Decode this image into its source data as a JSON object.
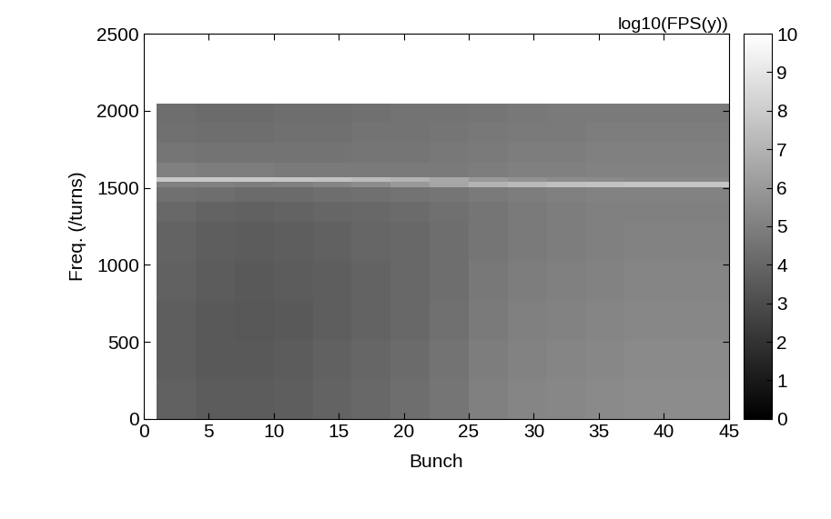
{
  "chart_data": {
    "type": "heatmap",
    "title": "log10(FPS(y))",
    "x_label": "Bunch",
    "y_label": "Freq. (/turns)",
    "x_edges": [
      1,
      4,
      7,
      10,
      13,
      16,
      19,
      22,
      25,
      28,
      31,
      34,
      37,
      40,
      43,
      45
    ],
    "y_edges": [
      0,
      256,
      512,
      768,
      1024,
      1280,
      1408,
      1504,
      1536,
      1568,
      1664,
      1792,
      1920,
      2048
    ],
    "cells": [
      [
        3.8,
        3.6,
        3.6,
        3.7,
        3.9,
        4.1,
        4.3,
        4.6,
        5.0,
        5.2,
        5.3,
        5.4,
        5.5,
        5.5,
        5.5
      ],
      [
        3.7,
        3.5,
        3.5,
        3.6,
        3.8,
        4.0,
        4.2,
        4.5,
        4.9,
        5.1,
        5.2,
        5.3,
        5.4,
        5.4,
        5.4
      ],
      [
        3.7,
        3.5,
        3.4,
        3.5,
        3.7,
        3.9,
        4.1,
        4.4,
        4.8,
        5.0,
        5.1,
        5.2,
        5.3,
        5.3,
        5.3
      ],
      [
        3.8,
        3.6,
        3.5,
        3.6,
        3.7,
        3.9,
        4.1,
        4.3,
        4.7,
        4.9,
        5.0,
        5.1,
        5.2,
        5.2,
        5.2
      ],
      [
        3.9,
        3.7,
        3.6,
        3.7,
        3.8,
        4.0,
        4.1,
        4.3,
        4.6,
        4.8,
        4.9,
        5.0,
        5.1,
        5.1,
        5.1
      ],
      [
        4.1,
        3.9,
        3.8,
        3.9,
        4.0,
        4.1,
        4.2,
        4.4,
        4.6,
        4.8,
        4.9,
        5.0,
        5.0,
        5.0,
        5.0
      ],
      [
        4.4,
        4.3,
        4.2,
        4.2,
        4.3,
        4.4,
        4.5,
        4.6,
        4.8,
        4.9,
        5.0,
        5.1,
        5.1,
        5.1,
        5.1
      ],
      [
        5.0,
        5.0,
        4.9,
        5.0,
        5.2,
        5.5,
        6.0,
        6.5,
        7.0,
        7.3,
        7.5,
        7.6,
        7.7,
        7.7,
        7.7
      ],
      [
        7.8,
        7.8,
        7.8,
        7.7,
        7.6,
        7.3,
        7.0,
        6.6,
        6.0,
        5.7,
        5.5,
        5.4,
        5.3,
        5.3,
        5.3
      ],
      [
        5.0,
        4.9,
        4.9,
        4.8,
        4.8,
        4.8,
        4.8,
        4.8,
        4.9,
        5.0,
        5.0,
        5.1,
        5.1,
        5.1,
        5.1
      ],
      [
        4.6,
        4.5,
        4.5,
        4.5,
        4.5,
        4.6,
        4.6,
        4.7,
        4.8,
        4.9,
        4.9,
        5.0,
        5.0,
        5.0,
        5.0
      ],
      [
        4.4,
        4.3,
        4.3,
        4.4,
        4.4,
        4.5,
        4.5,
        4.6,
        4.7,
        4.8,
        4.8,
        4.9,
        4.9,
        4.9,
        4.9
      ],
      [
        4.3,
        4.2,
        4.2,
        4.3,
        4.3,
        4.4,
        4.5,
        4.5,
        4.6,
        4.7,
        4.8,
        4.8,
        4.8,
        4.8,
        4.8
      ]
    ],
    "color": "gray",
    "xlim": [
      0,
      45
    ],
    "xticks": [
      0,
      5,
      10,
      15,
      20,
      25,
      30,
      35,
      40,
      45
    ],
    "ylim": [
      0,
      2500
    ],
    "yticks": [
      0,
      500,
      1000,
      1500,
      2000,
      2500
    ],
    "colorbar": {
      "range": [
        0,
        10
      ],
      "ticks": [
        0,
        1,
        2,
        3,
        4,
        5,
        6,
        7,
        8,
        9,
        10
      ]
    },
    "grid": false
  }
}
